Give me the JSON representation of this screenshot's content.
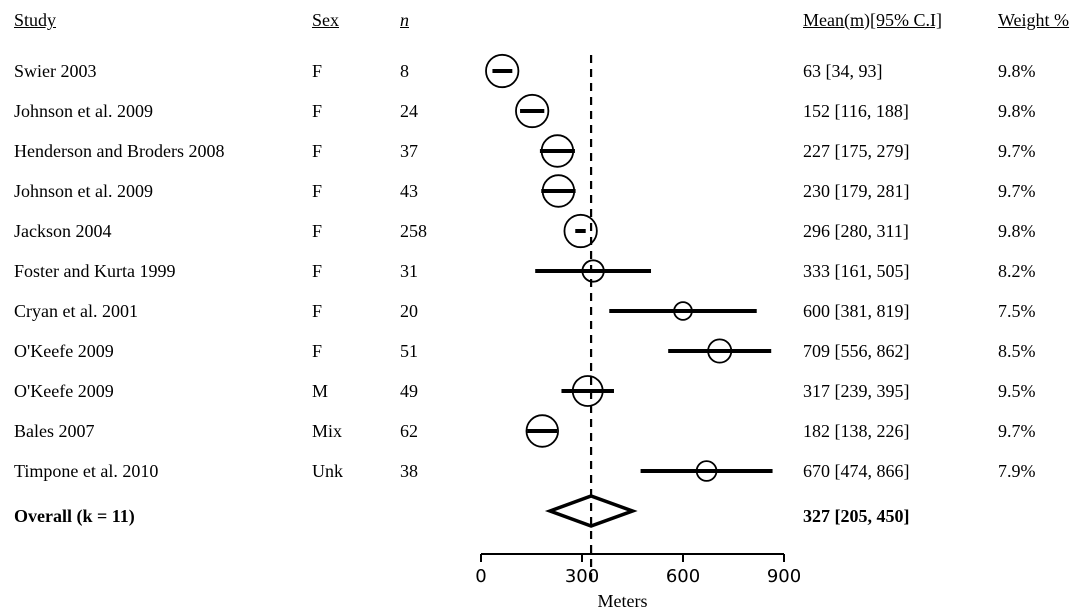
{
  "headers": {
    "study": "Study",
    "sex": "Sex",
    "n": "n",
    "mean": "Mean(m)[95% C.I]",
    "weight": "Weight %"
  },
  "rows": [
    {
      "study": "Swier 2003",
      "sex": "F",
      "n": "8",
      "mean_ci": "63 [34, 93]",
      "weight": "9.8%"
    },
    {
      "study": "Johnson et al. 2009",
      "sex": "F",
      "n": "24",
      "mean_ci": "152 [116, 188]",
      "weight": "9.8%"
    },
    {
      "study": "Henderson and Broders 2008",
      "sex": "F",
      "n": "37",
      "mean_ci": "227 [175, 279]",
      "weight": "9.7%"
    },
    {
      "study": "Johnson et al. 2009",
      "sex": "F",
      "n": "43",
      "mean_ci": "230 [179, 281]",
      "weight": "9.7%"
    },
    {
      "study": "Jackson 2004",
      "sex": "F",
      "n": "258",
      "mean_ci": "296 [280, 311]",
      "weight": "9.8%"
    },
    {
      "study": "Foster and Kurta 1999",
      "sex": "F",
      "n": "31",
      "mean_ci": "333 [161, 505]",
      "weight": "8.2%"
    },
    {
      "study": "Cryan et al. 2001",
      "sex": "F",
      "n": "20",
      "mean_ci": "600 [381, 819]",
      "weight": "7.5%"
    },
    {
      "study": "O'Keefe 2009",
      "sex": "F",
      "n": "51",
      "mean_ci": "709 [556, 862]",
      "weight": "8.5%"
    },
    {
      "study": "O'Keefe 2009",
      "sex": "M",
      "n": "49",
      "mean_ci": "317 [239, 395]",
      "weight": "9.5%"
    },
    {
      "study": "Bales 2007",
      "sex": "Mix",
      "n": "62",
      "mean_ci": "182 [138, 226]",
      "weight": "9.7%"
    },
    {
      "study": "Timpone et al. 2010",
      "sex": "Unk",
      "n": "38",
      "mean_ci": "670 [474, 866]",
      "weight": "7.9%"
    }
  ],
  "overall": {
    "label": "Overall (k = 11)",
    "mean_ci": "327 [205, 450]"
  },
  "chart_data": {
    "type": "forest",
    "xlabel": "Meters",
    "xlim": [
      0,
      900
    ],
    "xticks": [
      0,
      300,
      600,
      900
    ],
    "xtick_labels": [
      "0",
      "300",
      "600",
      "900"
    ],
    "reference_line": 327,
    "series": [
      {
        "mean": 63,
        "lower": 34,
        "upper": 93,
        "weight": 9.8
      },
      {
        "mean": 152,
        "lower": 116,
        "upper": 188,
        "weight": 9.8
      },
      {
        "mean": 227,
        "lower": 175,
        "upper": 279,
        "weight": 9.7
      },
      {
        "mean": 230,
        "lower": 179,
        "upper": 281,
        "weight": 9.7
      },
      {
        "mean": 296,
        "lower": 280,
        "upper": 311,
        "weight": 9.8
      },
      {
        "mean": 333,
        "lower": 161,
        "upper": 505,
        "weight": 8.2
      },
      {
        "mean": 600,
        "lower": 381,
        "upper": 819,
        "weight": 7.5
      },
      {
        "mean": 709,
        "lower": 556,
        "upper": 862,
        "weight": 8.5
      },
      {
        "mean": 317,
        "lower": 239,
        "upper": 395,
        "weight": 9.5
      },
      {
        "mean": 182,
        "lower": 138,
        "upper": 226,
        "weight": 9.7
      },
      {
        "mean": 670,
        "lower": 474,
        "upper": 866,
        "weight": 7.9
      }
    ],
    "overall": {
      "mean": 327,
      "lower": 205,
      "upper": 450
    }
  }
}
